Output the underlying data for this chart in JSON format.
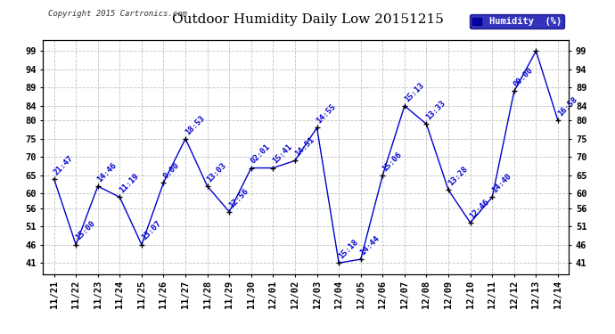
{
  "title": "Outdoor Humidity Daily Low 20151215",
  "copyright": "Copyright 2015 Cartronics.com",
  "legend_label": "Humidity  (%)",
  "x_labels": [
    "11/21",
    "11/22",
    "11/23",
    "11/24",
    "11/25",
    "11/26",
    "11/27",
    "11/28",
    "11/29",
    "11/30",
    "12/01",
    "12/02",
    "12/03",
    "12/04",
    "12/05",
    "12/06",
    "12/07",
    "12/08",
    "12/09",
    "12/10",
    "12/11",
    "12/12",
    "12/13",
    "12/14"
  ],
  "y_values": [
    64,
    46,
    62,
    59,
    46,
    63,
    75,
    62,
    55,
    67,
    67,
    69,
    78,
    41,
    42,
    65,
    84,
    79,
    61,
    52,
    59,
    88,
    99,
    80
  ],
  "point_labels": [
    "21:47",
    "15:00",
    "14:46",
    "11:19",
    "13:07",
    "0:00",
    "18:53",
    "13:03",
    "12:56",
    "02:01",
    "15:41",
    "14:51",
    "14:55",
    "15:18",
    "14:44",
    "15:06",
    "15:13",
    "13:33",
    "13:28",
    "12:46",
    "14:40",
    "00:00",
    "",
    "16:58"
  ],
  "y_ticks": [
    41,
    46,
    51,
    56,
    60,
    65,
    70,
    75,
    80,
    84,
    89,
    94,
    99
  ],
  "y_min": 38,
  "y_max": 102,
  "line_color": "#0000cc",
  "marker_color": "#000000",
  "label_color": "#0000cc",
  "grid_color": "#c0c0c0",
  "bg_color": "#ffffff",
  "title_fontsize": 11,
  "label_fontsize": 6.5,
  "tick_fontsize": 7.5,
  "legend_bg": "#0000aa",
  "legend_fg": "#ffffff"
}
